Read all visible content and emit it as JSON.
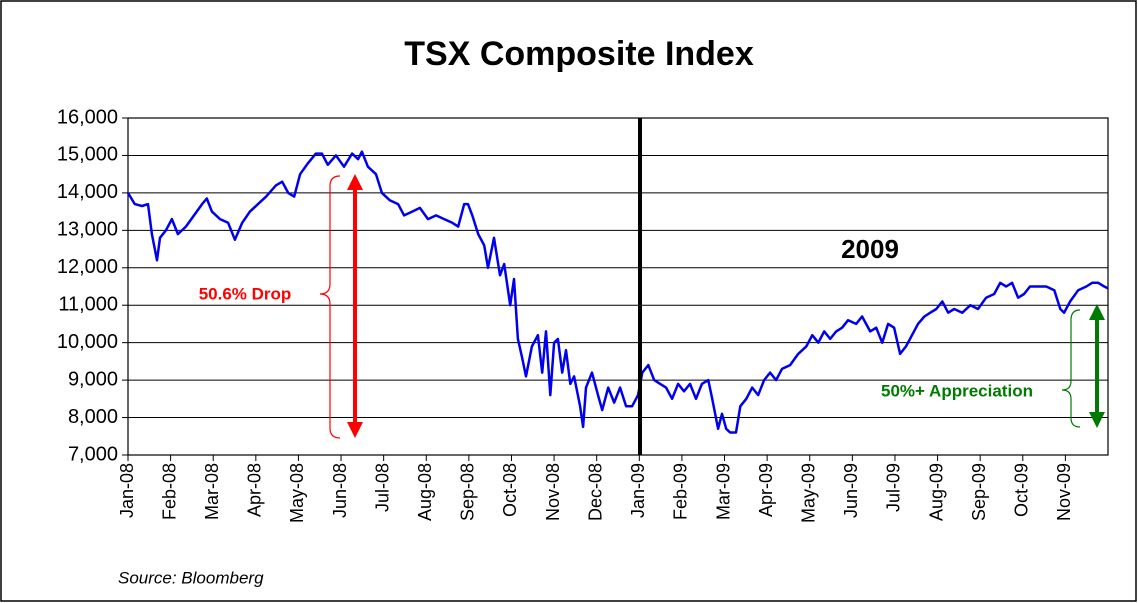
{
  "chart_data": {
    "type": "line",
    "title": "TSX Composite Index",
    "source": "Source: Bloomberg",
    "annotations": [
      "2009",
      "50.6% Drop",
      "50%+ Appreciation"
    ],
    "color": "#0000ee",
    "grid": true,
    "xlim": [
      0,
      23
    ],
    "ylim": [
      7000,
      16000
    ],
    "yticks": [
      {
        "value": 7000,
        "label": "7,000"
      },
      {
        "value": 8000,
        "label": "8,000"
      },
      {
        "value": 9000,
        "label": "9,000"
      },
      {
        "value": 10000,
        "label": "10,000"
      },
      {
        "value": 11000,
        "label": "11,000"
      },
      {
        "value": 12000,
        "label": "12,000"
      },
      {
        "value": 13000,
        "label": "13,000"
      },
      {
        "value": 14000,
        "label": "14,000"
      },
      {
        "value": 15000,
        "label": "15,000"
      },
      {
        "value": 16000,
        "label": "16,000"
      }
    ],
    "xticks": [
      {
        "value": 0,
        "label": "Jan-08"
      },
      {
        "value": 1,
        "label": "Feb-08"
      },
      {
        "value": 2,
        "label": "Mar-08"
      },
      {
        "value": 3,
        "label": "Apr-08"
      },
      {
        "value": 4,
        "label": "May-08"
      },
      {
        "value": 5,
        "label": "Jun-08"
      },
      {
        "value": 6,
        "label": "Jul-08"
      },
      {
        "value": 7,
        "label": "Aug-08"
      },
      {
        "value": 8,
        "label": "Sep-08"
      },
      {
        "value": 9,
        "label": "Oct-08"
      },
      {
        "value": 10,
        "label": "Nov-08"
      },
      {
        "value": 11,
        "label": "Dec-08"
      },
      {
        "value": 12,
        "label": "Jan-09"
      },
      {
        "value": 13,
        "label": "Feb-09"
      },
      {
        "value": 14,
        "label": "Mar-09"
      },
      {
        "value": 15,
        "label": "Apr-09"
      },
      {
        "value": 16,
        "label": "May-09"
      },
      {
        "value": 17,
        "label": "Jun-09"
      },
      {
        "value": 18,
        "label": "Jul-09"
      },
      {
        "value": 19,
        "label": "Aug-09"
      },
      {
        "value": 20,
        "label": "Sep-09"
      },
      {
        "value": 21,
        "label": "Oct-09"
      },
      {
        "value": 22,
        "label": "Nov-09"
      }
    ],
    "x": [
      0,
      0.16,
      0.33,
      0.47,
      0.56,
      0.68,
      0.75,
      0.89,
      1.03,
      1.17,
      1.36,
      1.55,
      1.74,
      1.85,
      1.97,
      2.16,
      2.35,
      2.51,
      2.68,
      2.86,
      3.05,
      3.24,
      3.47,
      3.62,
      3.76,
      3.9,
      4.04,
      4.23,
      4.41,
      4.55,
      4.69,
      4.88,
      5.07,
      5.26,
      5.4,
      5.49,
      5.63,
      5.82,
      5.96,
      6.15,
      6.34,
      6.48,
      6.67,
      6.85,
      7.04,
      7.23,
      7.42,
      7.61,
      7.75,
      7.89,
      7.98,
      8.08,
      8.22,
      8.36,
      8.45,
      8.59,
      8.73,
      8.83,
      8.97,
      9.06,
      9.15,
      9.25,
      9.34,
      9.48,
      9.62,
      9.72,
      9.81,
      9.91,
      10,
      10.09,
      10.19,
      10.28,
      10.38,
      10.47,
      10.61,
      10.68,
      10.75,
      10.89,
      11.03,
      11.13,
      11.27,
      11.41,
      11.55,
      11.69,
      11.83,
      11.97,
      12.07,
      12.21,
      12.35,
      12.49,
      12.63,
      12.77,
      12.91,
      13.05,
      13.19,
      13.33,
      13.47,
      13.62,
      13.71,
      13.85,
      13.94,
      14.04,
      14.13,
      14.27,
      14.37,
      14.51,
      14.65,
      14.79,
      14.93,
      15.07,
      15.21,
      15.35,
      15.54,
      15.73,
      15.92,
      16.06,
      16.2,
      16.34,
      16.48,
      16.62,
      16.76,
      16.9,
      17.09,
      17.23,
      17.42,
      17.56,
      17.7,
      17.84,
      17.98,
      18.12,
      18.26,
      18.4,
      18.54,
      18.69,
      18.83,
      18.97,
      19.11,
      19.25,
      19.39,
      19.58,
      19.77,
      19.95,
      20.14,
      20.33,
      20.47,
      20.61,
      20.75,
      20.89,
      21.03,
      21.17,
      21.36,
      21.55,
      21.74,
      21.88,
      21.97,
      22.11,
      22.3,
      22.49,
      22.63,
      22.77,
      22.91,
      23
    ],
    "values": [
      14000,
      13700,
      13650,
      13700,
      12900,
      12200,
      12800,
      13000,
      13300,
      12900,
      13100,
      13400,
      13700,
      13850,
      13500,
      13300,
      13200,
      12750,
      13200,
      13500,
      13700,
      13900,
      14200,
      14300,
      14000,
      13900,
      14500,
      14800,
      15050,
      15050,
      14750,
      15000,
      14700,
      15050,
      14900,
      15100,
      14700,
      14500,
      14000,
      13800,
      13700,
      13400,
      13500,
      13600,
      13300,
      13400,
      13300,
      13200,
      13100,
      13700,
      13700,
      13400,
      12900,
      12600,
      12000,
      12800,
      11800,
      12100,
      11000,
      11700,
      10100,
      9600,
      9100,
      9900,
      10200,
      9200,
      10300,
      8600,
      10000,
      10100,
      9200,
      9800,
      8900,
      9100,
      8300,
      7750,
      8800,
      9200,
      8600,
      8200,
      8800,
      8400,
      8800,
      8300,
      8300,
      8600,
      9200,
      9400,
      9000,
      8900,
      8800,
      8500,
      8900,
      8700,
      8900,
      8500,
      8900,
      9000,
      8500,
      7700,
      8100,
      7700,
      7600,
      7600,
      8300,
      8500,
      8800,
      8600,
      9000,
      9200,
      9000,
      9300,
      9400,
      9700,
      9900,
      10200,
      10000,
      10300,
      10100,
      10300,
      10400,
      10600,
      10500,
      10700,
      10300,
      10400,
      10000,
      10500,
      10400,
      9700,
      9900,
      10200,
      10500,
      10700,
      10800,
      10900,
      11100,
      10800,
      10900,
      10800,
      11000,
      10900,
      11200,
      11300,
      11600,
      11500,
      11600,
      11200,
      11300,
      11500,
      11500,
      11500,
      11400,
      10900,
      10800,
      11100,
      11400,
      11500,
      11600,
      11600,
      11500,
      11450
    ]
  }
}
